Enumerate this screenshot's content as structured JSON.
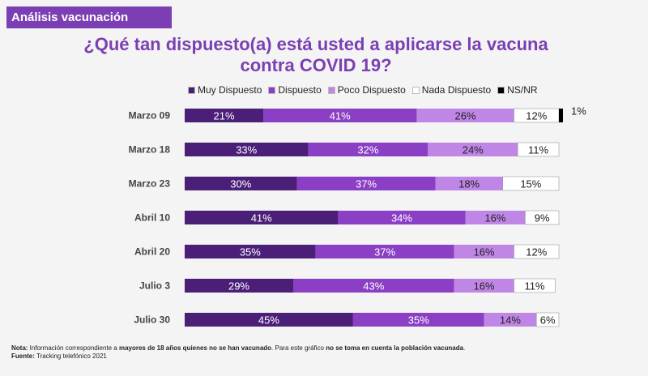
{
  "header": {
    "section_label": "Análisis vacunación",
    "title_line1": "¿Qué tan dispuesto(a) está usted a aplicarse la vacuna",
    "title_line2": "contra COVID 19?"
  },
  "chart_data": {
    "type": "bar",
    "orientation": "horizontal",
    "stacked": true,
    "percent_scale": true,
    "legend_position": "top",
    "categories": [
      "Marzo 09",
      "Marzo 18",
      "Marzo 23",
      "Abril 10",
      "Abril 20",
      "Julio 3",
      "Julio 30"
    ],
    "series": [
      {
        "name": "Muy Dispuesto",
        "color": "#4b1f78",
        "values": [
          21,
          33,
          30,
          41,
          35,
          29,
          45
        ]
      },
      {
        "name": "Dispuesto",
        "color": "#8a3fc4",
        "values": [
          41,
          32,
          37,
          34,
          37,
          43,
          35
        ]
      },
      {
        "name": "Poco Dispuesto",
        "color": "#bf86e6",
        "values": [
          26,
          24,
          18,
          16,
          16,
          16,
          14
        ]
      },
      {
        "name": "Nada Dispuesto",
        "color": "#ffffff",
        "values": [
          12,
          11,
          15,
          9,
          12,
          11,
          6
        ]
      },
      {
        "name": "NS/NR",
        "color": "#000000",
        "values": [
          1,
          0,
          0,
          0,
          0,
          0,
          0
        ]
      }
    ]
  },
  "footer": {
    "note_label": "Nota:",
    "note_text1": " Información correspondiente a ",
    "note_bold1": "mayores de 18 años quienes no se han vacunado",
    "note_text2": ". Para este gráfico ",
    "note_bold2": "no se toma en cuenta la población vacunada",
    "note_text3": ".",
    "source_label": "Fuente:",
    "source_text": " Tracking telefónico 2021"
  }
}
